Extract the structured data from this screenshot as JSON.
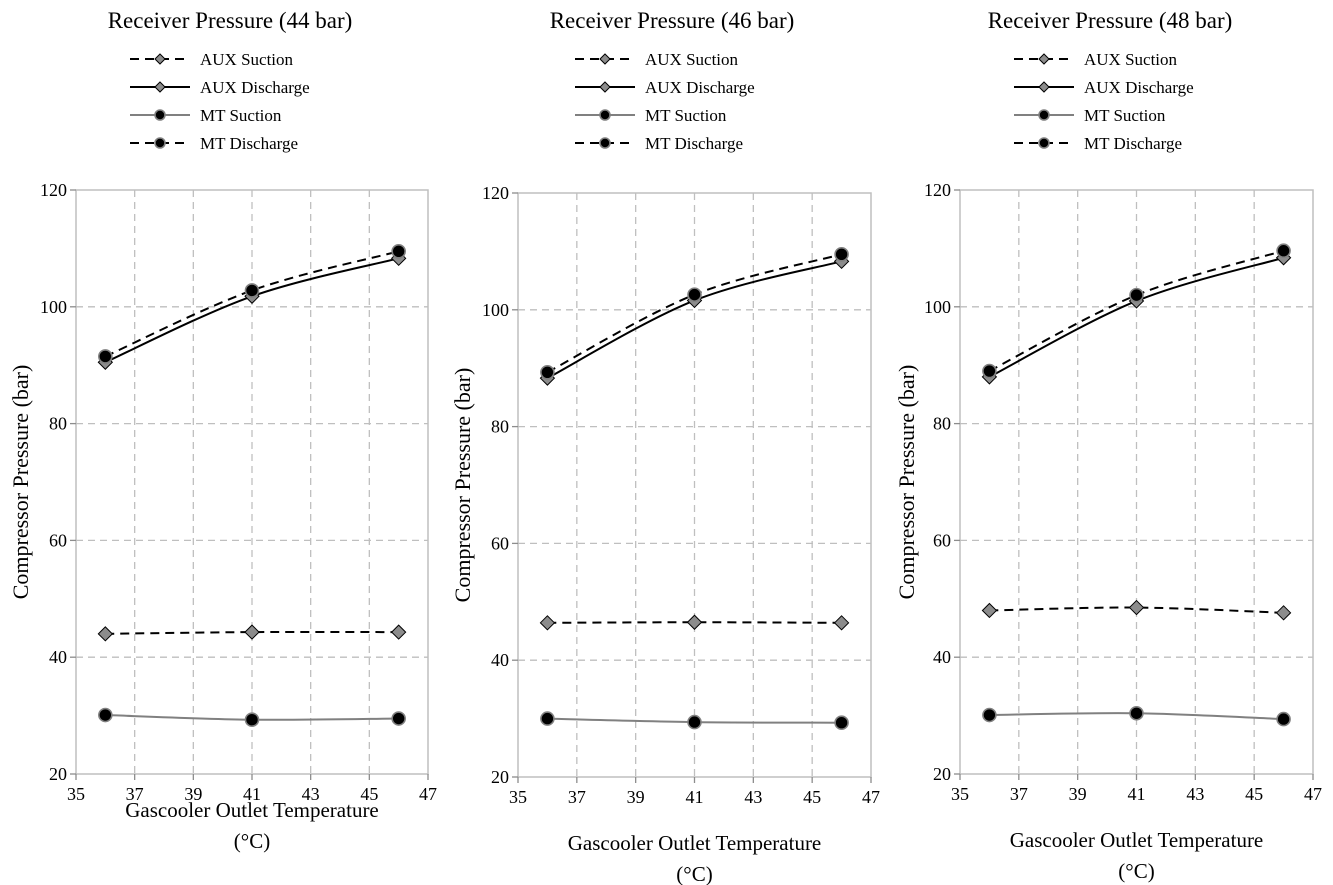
{
  "figure": {
    "background": "#ffffff"
  },
  "chart_data": [
    {
      "type": "line",
      "title": "Receiver Pressure (44 bar)",
      "xlabel": [
        "Gascooler Outlet Temperature",
        "(°C)"
      ],
      "ylabel": "Compressor Pressure (bar)",
      "xlim": [
        35,
        47
      ],
      "ylim": [
        20,
        120
      ],
      "xticks": [
        "35",
        "37",
        "39",
        "41",
        "43",
        "45",
        "47"
      ],
      "yticks": [
        "20",
        "40",
        "60",
        "80",
        "100",
        "120"
      ],
      "grid": true,
      "legend_position": "top",
      "x": [
        36,
        41,
        46
      ],
      "series": [
        {
          "name": "AUX Suction",
          "values": [
            44.0,
            44.3,
            44.3
          ],
          "line_style": "dashed",
          "line_color": "#000000",
          "marker": "diamond",
          "marker_fill": "#8c8c8c"
        },
        {
          "name": "AUX Discharge",
          "values": [
            90.5,
            101.8,
            108.3
          ],
          "line_style": "solid",
          "line_color": "#000000",
          "marker": "diamond",
          "marker_fill": "#8c8c8c"
        },
        {
          "name": "MT Suction",
          "values": [
            30.1,
            29.3,
            29.5
          ],
          "line_style": "solid",
          "line_color": "#808080",
          "marker": "circle",
          "marker_fill": "#000000"
        },
        {
          "name": "MT Discharge",
          "values": [
            91.5,
            102.8,
            109.5
          ],
          "line_style": "dashed",
          "line_color": "#000000",
          "marker": "circle",
          "marker_fill": "#000000"
        }
      ]
    },
    {
      "type": "line",
      "title": "Receiver Pressure (46 bar)",
      "xlabel": [
        "Gascooler Outlet Temperature",
        "(°C)"
      ],
      "ylabel": "Compressor Pressure (bar)",
      "xlim": [
        35,
        47
      ],
      "ylim": [
        20,
        120
      ],
      "xticks": [
        "35",
        "37",
        "39",
        "41",
        "43",
        "45",
        "47"
      ],
      "yticks": [
        "20",
        "40",
        "60",
        "80",
        "100",
        "120"
      ],
      "grid": true,
      "legend_position": "top",
      "x": [
        36,
        41,
        46
      ],
      "series": [
        {
          "name": "AUX Suction",
          "values": [
            46.4,
            46.5,
            46.4
          ],
          "line_style": "dashed",
          "line_color": "#000000",
          "marker": "diamond",
          "marker_fill": "#8c8c8c"
        },
        {
          "name": "AUX Discharge",
          "values": [
            88.3,
            101.6,
            108.3
          ],
          "line_style": "solid",
          "line_color": "#000000",
          "marker": "diamond",
          "marker_fill": "#8c8c8c"
        },
        {
          "name": "MT Suction",
          "values": [
            30.0,
            29.4,
            29.3
          ],
          "line_style": "solid",
          "line_color": "#808080",
          "marker": "circle",
          "marker_fill": "#000000"
        },
        {
          "name": "MT Discharge",
          "values": [
            89.3,
            102.6,
            109.5
          ],
          "line_style": "dashed",
          "line_color": "#000000",
          "marker": "circle",
          "marker_fill": "#000000"
        }
      ]
    },
    {
      "type": "line",
      "title": "Receiver Pressure (48 bar)",
      "xlabel": [
        "Gascooler Outlet Temperature",
        "(°C)"
      ],
      "ylabel": "Compressor Pressure (bar)",
      "xlim": [
        35,
        47
      ],
      "ylim": [
        20,
        120
      ],
      "xticks": [
        "35",
        "37",
        "39",
        "41",
        "43",
        "45",
        "47"
      ],
      "yticks": [
        "20",
        "40",
        "60",
        "80",
        "100",
        "120"
      ],
      "grid": true,
      "legend_position": "top",
      "x": [
        36,
        41,
        46
      ],
      "series": [
        {
          "name": "AUX Suction",
          "values": [
            48.0,
            48.5,
            47.6
          ],
          "line_style": "dashed",
          "line_color": "#000000",
          "marker": "diamond",
          "marker_fill": "#8c8c8c"
        },
        {
          "name": "AUX Discharge",
          "values": [
            88.0,
            101.0,
            108.4
          ],
          "line_style": "solid",
          "line_color": "#000000",
          "marker": "diamond",
          "marker_fill": "#8c8c8c"
        },
        {
          "name": "MT Suction",
          "values": [
            30.1,
            30.4,
            29.4
          ],
          "line_style": "solid",
          "line_color": "#808080",
          "marker": "circle",
          "marker_fill": "#000000"
        },
        {
          "name": "MT Discharge",
          "values": [
            89.0,
            102.0,
            109.6
          ],
          "line_style": "dashed",
          "line_color": "#000000",
          "marker": "circle",
          "marker_fill": "#000000"
        }
      ]
    }
  ]
}
